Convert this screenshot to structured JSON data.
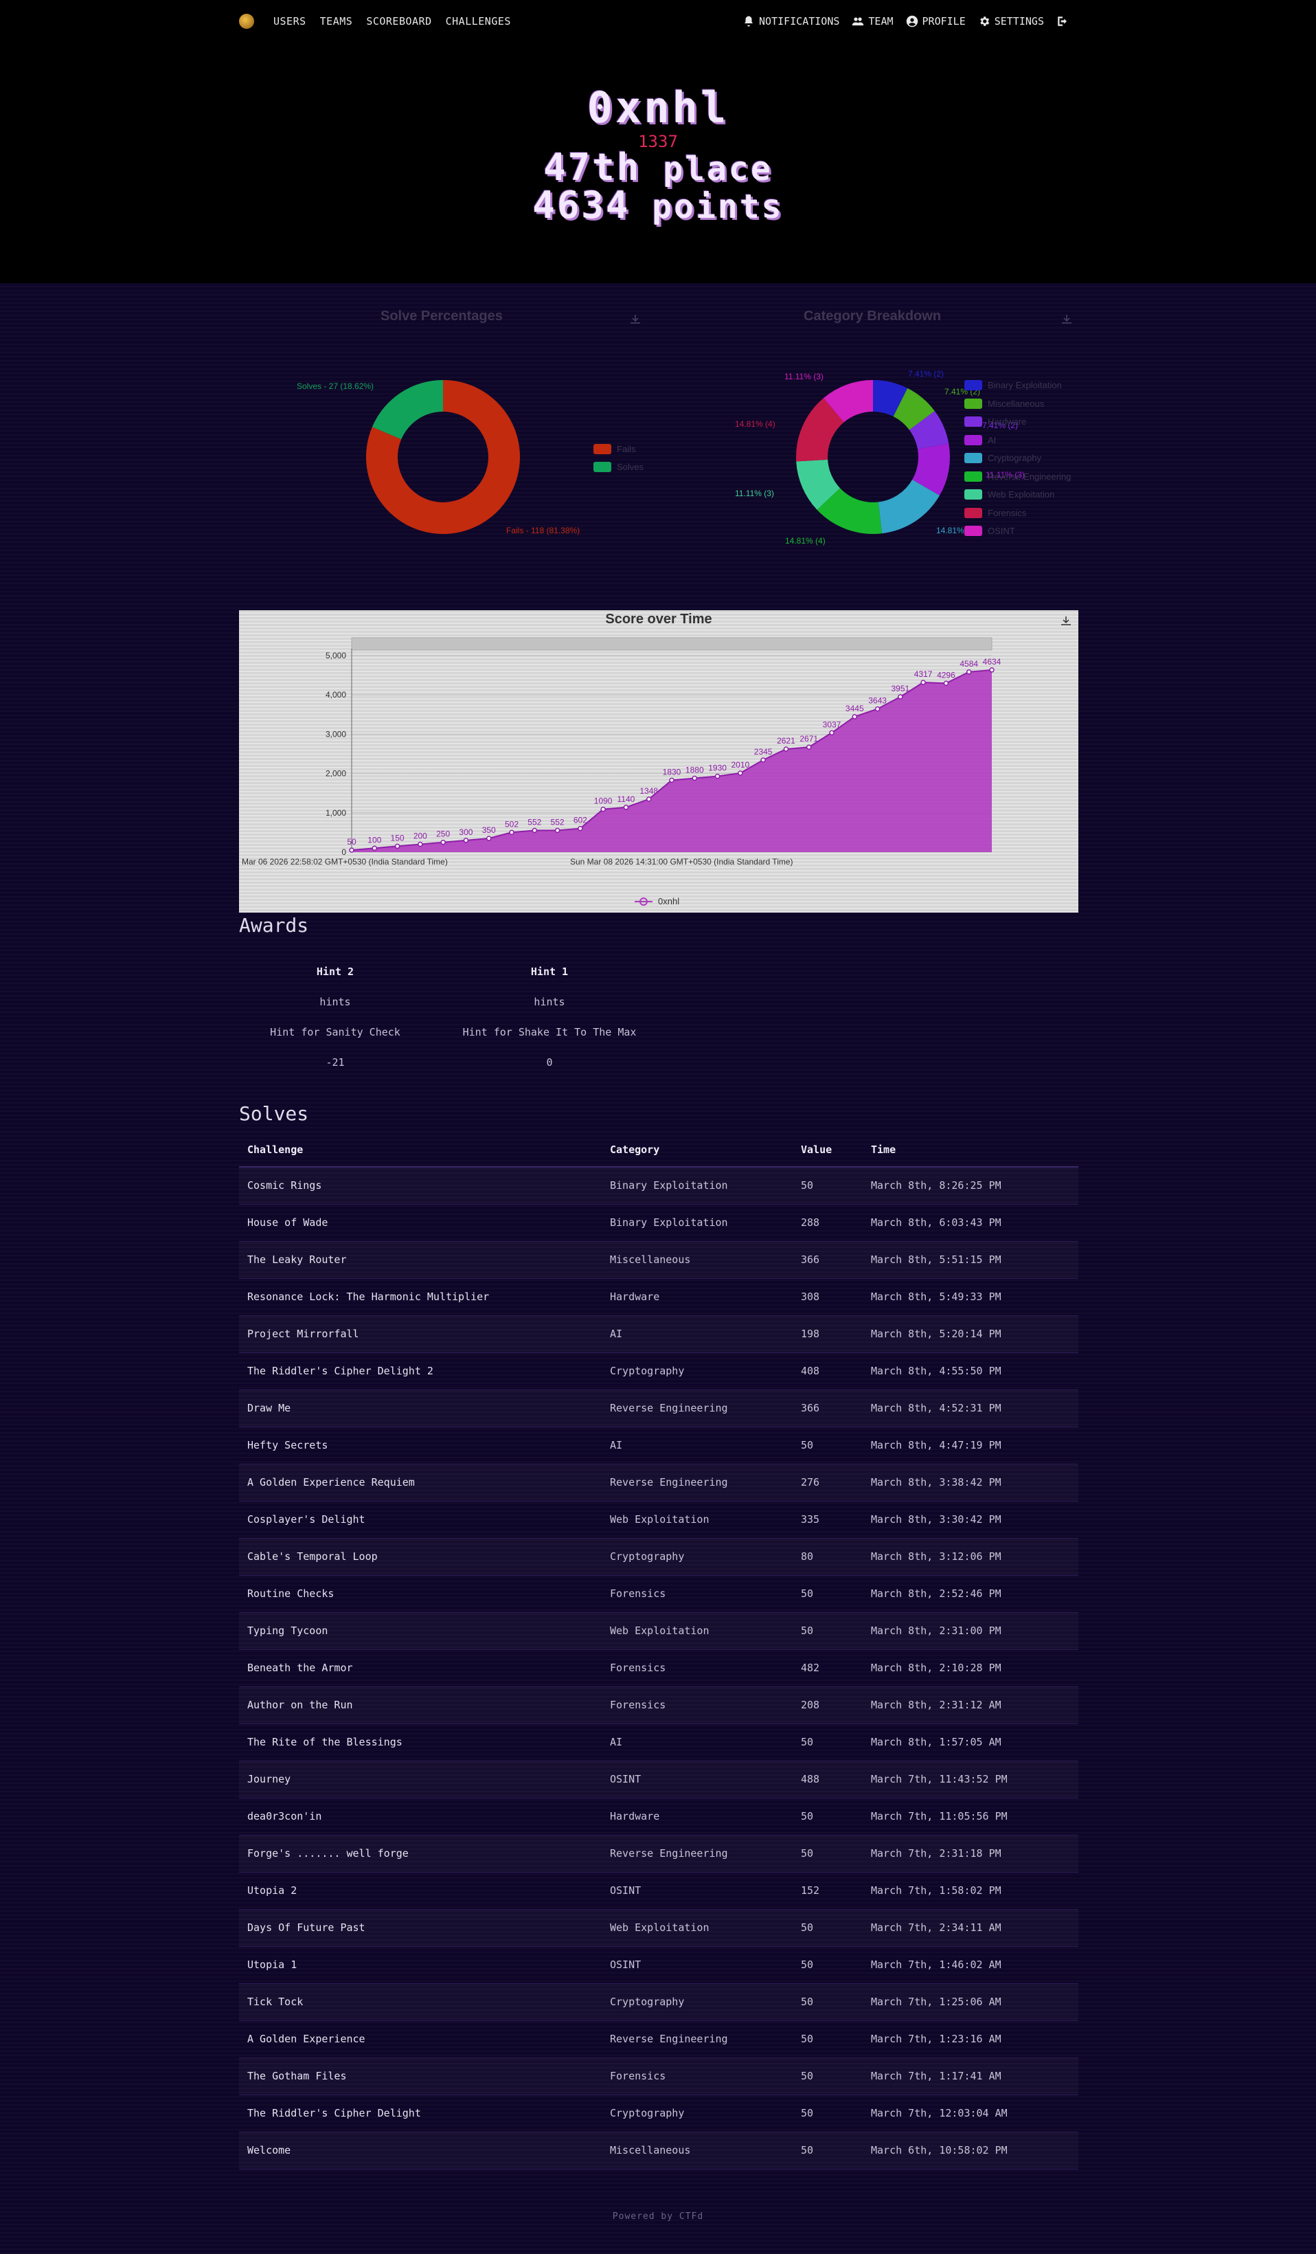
{
  "nav": {
    "left": [
      "USERS",
      "TEAMS",
      "SCOREBOARD",
      "CHALLENGES"
    ],
    "right": [
      {
        "label": "NOTIFICATIONS",
        "icon": "bell-icon"
      },
      {
        "label": "TEAM",
        "icon": "users-icon"
      },
      {
        "label": "PROFILE",
        "icon": "user-circle-icon"
      },
      {
        "label": "SETTINGS",
        "icon": "gear-icon"
      }
    ],
    "logout_icon": "logout-icon"
  },
  "hero": {
    "name": "0xnhl",
    "affiliation": "1337",
    "place_num": "47th",
    "place_word": "place",
    "points_num": "4634",
    "points_word": "points"
  },
  "solve_percentages": {
    "title": "Solve Percentages",
    "fails_callout": "Fails - 118 (81.38%)",
    "solves_callout": "Solves - 27 (18.62%)",
    "legend": [
      "Fails",
      "Solves"
    ]
  },
  "category_breakdown": {
    "title": "Category Breakdown",
    "legend": [
      "Binary Exploitation",
      "Miscellaneous",
      "Hardware",
      "AI",
      "Cryptography",
      "Reverse Engineering",
      "Web Exploitation",
      "Forensics",
      "OSINT"
    ],
    "callouts": {
      "binary": "7.41% (2)",
      "misc": "7.41% (2)",
      "hardware": "7.41% (2)",
      "ai": "11.11% (3)",
      "crypto": "14.81% (4)",
      "reverse": "14.81% (4)",
      "web": "11.11% (3)",
      "forensics": "14.81% (4)",
      "osint": "11.11% (3)"
    }
  },
  "score_chart": {
    "title": "Score over Time",
    "start_label": "Mar 06 2026 22:58:02 GMT+0530 (India Standard Time)",
    "mid_label": "Sun Mar 08 2026 14:31:00 GMT+0530 (India Standard Time)",
    "legend_name": "0xnhl",
    "y_ticks": [
      "0",
      "1,000",
      "2,000",
      "3,000",
      "4,000",
      "5,000"
    ]
  },
  "chart_data": [
    {
      "type": "pie",
      "title": "Solve Percentages",
      "labels": [
        "Fails",
        "Solves"
      ],
      "values": [
        118,
        27
      ],
      "percentages": [
        81.38,
        18.62
      ],
      "colors": [
        "#c22b0e",
        "#12a35a"
      ]
    },
    {
      "type": "pie",
      "title": "Category Breakdown",
      "labels": [
        "Binary Exploitation",
        "Miscellaneous",
        "Hardware",
        "AI",
        "Cryptography",
        "Reverse Engineering",
        "Web Exploitation",
        "Forensics",
        "OSINT"
      ],
      "values": [
        2,
        2,
        2,
        3,
        4,
        4,
        3,
        4,
        3
      ],
      "percentages": [
        7.41,
        7.41,
        7.41,
        11.11,
        14.81,
        14.81,
        11.11,
        14.81,
        11.11
      ],
      "colors": [
        "#2222cc",
        "#4aae1e",
        "#7d2fe0",
        "#a11ed6",
        "#34a6c9",
        "#18b82e",
        "#3fcf96",
        "#c41a4a",
        "#d21fc0"
      ]
    },
    {
      "type": "area",
      "title": "Score over Time",
      "series": [
        {
          "name": "0xnhl",
          "values": [
            50,
            100,
            150,
            200,
            250,
            300,
            350,
            502,
            552,
            552,
            602,
            1090,
            1140,
            1348,
            1830,
            1880,
            1930,
            2010,
            2345,
            2621,
            2671,
            3037,
            3445,
            3643,
            3951,
            4317,
            4296,
            4584,
            4634
          ]
        }
      ],
      "point_labels": [
        "50",
        "100",
        "150",
        "200",
        "250",
        "300",
        "350",
        "502",
        "552",
        "552",
        "602",
        "1090",
        "1140",
        "1348",
        "1830",
        "1880",
        "1930",
        "2010",
        "2345",
        "2621",
        "2671",
        "3037",
        "3445",
        "3643",
        "3951",
        "4317",
        "4296",
        "4584",
        "4634"
      ],
      "ylim": [
        0,
        5000
      ],
      "color": "#b03cc0"
    }
  ],
  "awards": {
    "heading": "Awards",
    "items": [
      {
        "name": "Hint 2",
        "category": "hints",
        "description": "Hint for Sanity Check",
        "value": "-21"
      },
      {
        "name": "Hint 1",
        "category": "hints",
        "description": "Hint for Shake It To The Max",
        "value": "0"
      }
    ]
  },
  "solves": {
    "heading": "Solves",
    "columns": [
      "Challenge",
      "Category",
      "Value",
      "Time"
    ],
    "rows": [
      [
        "Cosmic Rings",
        "Binary Exploitation",
        "50",
        "March 8th, 8:26:25 PM"
      ],
      [
        "House of Wade",
        "Binary Exploitation",
        "288",
        "March 8th, 6:03:43 PM"
      ],
      [
        "The Leaky Router",
        "Miscellaneous",
        "366",
        "March 8th, 5:51:15 PM"
      ],
      [
        "Resonance Lock: The Harmonic Multiplier",
        "Hardware",
        "308",
        "March 8th, 5:49:33 PM"
      ],
      [
        "Project Mirrorfall",
        "AI",
        "198",
        "March 8th, 5:20:14 PM"
      ],
      [
        "The Riddler's Cipher Delight 2",
        "Cryptography",
        "408",
        "March 8th, 4:55:50 PM"
      ],
      [
        "Draw Me",
        "Reverse Engineering",
        "366",
        "March 8th, 4:52:31 PM"
      ],
      [
        "Hefty Secrets",
        "AI",
        "50",
        "March 8th, 4:47:19 PM"
      ],
      [
        "A Golden Experience Requiem",
        "Reverse Engineering",
        "276",
        "March 8th, 3:38:42 PM"
      ],
      [
        "Cosplayer's Delight",
        "Web Exploitation",
        "335",
        "March 8th, 3:30:42 PM"
      ],
      [
        "Cable's Temporal Loop",
        "Cryptography",
        "80",
        "March 8th, 3:12:06 PM"
      ],
      [
        "Routine Checks",
        "Forensics",
        "50",
        "March 8th, 2:52:46 PM"
      ],
      [
        "Typing Tycoon",
        "Web Exploitation",
        "50",
        "March 8th, 2:31:00 PM"
      ],
      [
        "Beneath the Armor",
        "Forensics",
        "482",
        "March 8th, 2:10:28 PM"
      ],
      [
        "Author on the Run",
        "Forensics",
        "208",
        "March 8th, 2:31:12 AM"
      ],
      [
        "The Rite of the Blessings",
        "AI",
        "50",
        "March 8th, 1:57:05 AM"
      ],
      [
        "Journey",
        "OSINT",
        "488",
        "March 7th, 11:43:52 PM"
      ],
      [
        "dea0r3con'in",
        "Hardware",
        "50",
        "March 7th, 11:05:56 PM"
      ],
      [
        "Forge's ....... well forge",
        "Reverse Engineering",
        "50",
        "March 7th, 2:31:18 PM"
      ],
      [
        "Utopia 2",
        "OSINT",
        "152",
        "March 7th, 1:58:02 PM"
      ],
      [
        "Days Of Future Past",
        "Web Exploitation",
        "50",
        "March 7th, 2:34:11 AM"
      ],
      [
        "Utopia 1",
        "OSINT",
        "50",
        "March 7th, 1:46:02 AM"
      ],
      [
        "Tick Tock",
        "Cryptography",
        "50",
        "March 7th, 1:25:06 AM"
      ],
      [
        "A Golden Experience",
        "Reverse Engineering",
        "50",
        "March 7th, 1:23:16 AM"
      ],
      [
        "The Gotham Files",
        "Forensics",
        "50",
        "March 7th, 1:17:41 AM"
      ],
      [
        "The Riddler's Cipher Delight",
        "Cryptography",
        "50",
        "March 7th, 12:03:04 AM"
      ],
      [
        "Welcome",
        "Miscellaneous",
        "50",
        "March 6th, 10:58:02 PM"
      ]
    ]
  },
  "footer": "Powered by CTFd"
}
